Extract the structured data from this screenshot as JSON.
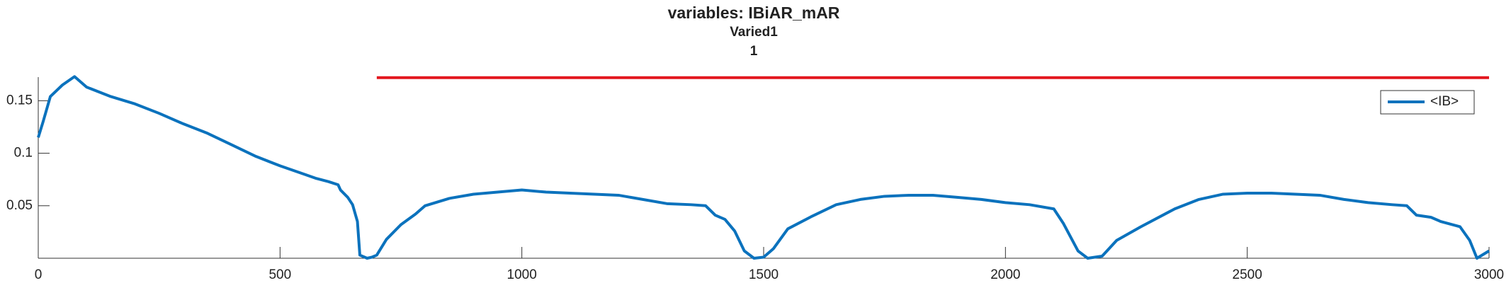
{
  "chart_data": {
    "type": "line",
    "title": "variables: IBiAR_mAR",
    "subtitle": "Varied1",
    "subtitle2": "1",
    "xlim": [
      0,
      3000
    ],
    "xticks": [
      0,
      500,
      1000,
      1500,
      2000,
      2500,
      3000
    ],
    "ylim": [
      0,
      0.1725
    ],
    "yticks": [
      0.05,
      0.1,
      0.15
    ],
    "legend": "upper right",
    "reference_line": {
      "x": [
        700,
        3000
      ],
      "y": [
        0.172,
        0.172
      ],
      "color": "#e3171e"
    },
    "series": [
      {
        "name": "<IB>",
        "color": "#0b72bd",
        "x": [
          0,
          10,
          25,
          50,
          75,
          100,
          150,
          200,
          250,
          300,
          350,
          400,
          450,
          500,
          550,
          575,
          600,
          620,
          625,
          640,
          650,
          660,
          665,
          680,
          690,
          700,
          720,
          750,
          780,
          800,
          850,
          900,
          950,
          1000,
          1050,
          1100,
          1150,
          1200,
          1250,
          1300,
          1350,
          1380,
          1400,
          1420,
          1440,
          1460,
          1480,
          1500,
          1520,
          1550,
          1600,
          1650,
          1700,
          1750,
          1800,
          1850,
          1900,
          1950,
          2000,
          2050,
          2100,
          2120,
          2150,
          2170,
          2200,
          2230,
          2280,
          2350,
          2400,
          2450,
          2500,
          2550,
          2600,
          2650,
          2700,
          2750,
          2800,
          2830,
          2850,
          2880,
          2900,
          2940,
          2960,
          2975,
          3000
        ],
        "values": [
          0.115,
          0.13,
          0.154,
          0.165,
          0.173,
          0.163,
          0.154,
          0.147,
          0.138,
          0.128,
          0.119,
          0.108,
          0.097,
          0.088,
          0.08,
          0.076,
          0.073,
          0.07,
          0.065,
          0.058,
          0.051,
          0.035,
          0.003,
          0.0,
          0.001,
          0.003,
          0.018,
          0.032,
          0.042,
          0.05,
          0.057,
          0.061,
          0.063,
          0.065,
          0.063,
          0.062,
          0.061,
          0.06,
          0.056,
          0.052,
          0.051,
          0.05,
          0.041,
          0.037,
          0.026,
          0.007,
          0.0,
          0.001,
          0.009,
          0.028,
          0.04,
          0.051,
          0.056,
          0.059,
          0.06,
          0.06,
          0.058,
          0.056,
          0.053,
          0.051,
          0.047,
          0.033,
          0.007,
          0.0,
          0.002,
          0.017,
          0.03,
          0.047,
          0.056,
          0.061,
          0.062,
          0.062,
          0.061,
          0.06,
          0.056,
          0.053,
          0.051,
          0.05,
          0.041,
          0.039,
          0.035,
          0.03,
          0.017,
          0.0,
          0.007
        ]
      }
    ]
  }
}
